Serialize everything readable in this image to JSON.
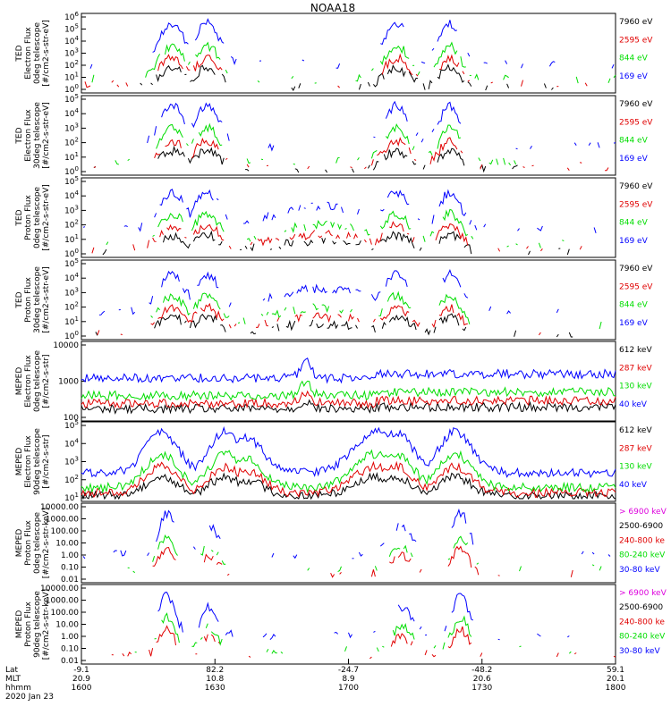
{
  "title": "NOAA18",
  "date_label": "2020 Jan 23",
  "xaxis": {
    "row_labels": [
      "Lat",
      "MLT",
      "hhmm"
    ],
    "times": [
      "1600",
      "1630",
      "1700",
      "1730",
      "1800"
    ],
    "lat": [
      "-9.1",
      "82.2",
      "-24.7",
      "-48.2",
      "59.1"
    ],
    "mlt": [
      "20.9",
      "10.8",
      "8.9",
      "20.6",
      "20.1"
    ]
  },
  "colors": {
    "black": "#000000",
    "blue": "#0000ff",
    "red": "#e00000",
    "green": "#00dd00",
    "magenta": "#dd00dd"
  },
  "chart_data": [
    {
      "type": "line",
      "ylabel": [
        "TED",
        "Electron Flux",
        "0deg telescope",
        "[#/cm2-s-str-eV]"
      ],
      "scale": "log",
      "yticks": [
        "10^0",
        "10^1",
        "10^2",
        "10^3",
        "10^4",
        "10^5",
        "10^6"
      ],
      "legend": [
        {
          "label": "7960 eV",
          "color": "#000000"
        },
        {
          "label": "2595 eV",
          "color": "#e00000"
        },
        {
          "label": "844 eV",
          "color": "#00dd00"
        },
        {
          "label": "169 eV",
          "color": "#0000ff"
        }
      ]
    },
    {
      "type": "line",
      "ylabel": [
        "TED",
        "Electron Flux",
        "30deg telescope",
        "[#/cm2-s-str-eV]"
      ],
      "scale": "log",
      "yticks": [
        "10^0",
        "10^1",
        "10^2",
        "10^3",
        "10^4",
        "10^5"
      ],
      "legend": [
        {
          "label": "7960 eV",
          "color": "#000000"
        },
        {
          "label": "2595 eV",
          "color": "#e00000"
        },
        {
          "label": "844 eV",
          "color": "#00dd00"
        },
        {
          "label": "169 eV",
          "color": "#0000ff"
        }
      ]
    },
    {
      "type": "line",
      "ylabel": [
        "TED",
        "Proton Flux",
        "0deg telescope",
        "[#/cm2-s-str-eV]"
      ],
      "scale": "log",
      "yticks": [
        "10^0",
        "10^1",
        "10^2",
        "10^3",
        "10^4",
        "10^5"
      ],
      "legend": [
        {
          "label": "7960 eV",
          "color": "#000000"
        },
        {
          "label": "2595 eV",
          "color": "#e00000"
        },
        {
          "label": "844 eV",
          "color": "#00dd00"
        },
        {
          "label": "169 eV",
          "color": "#0000ff"
        }
      ]
    },
    {
      "type": "line",
      "ylabel": [
        "TED",
        "Proton Flux",
        "30deg telescope",
        "[#/cm2-s-str-eV]"
      ],
      "scale": "log",
      "yticks": [
        "10^0",
        "10^1",
        "10^2",
        "10^3",
        "10^4",
        "10^5"
      ],
      "legend": [
        {
          "label": "7960 eV",
          "color": "#000000"
        },
        {
          "label": "2595 eV",
          "color": "#e00000"
        },
        {
          "label": "844 eV",
          "color": "#00dd00"
        },
        {
          "label": "169 eV",
          "color": "#0000ff"
        }
      ]
    },
    {
      "type": "line",
      "ylabel": [
        "MEPED",
        "Electron Flux",
        "0deg telescope",
        "[#/cm2-s-str]"
      ],
      "scale": "log",
      "yticks": [
        "100",
        "1000",
        "10000"
      ],
      "legend": [
        {
          "label": "612 keV",
          "color": "#000000"
        },
        {
          "label": "287 keV",
          "color": "#e00000"
        },
        {
          "label": "130 keV",
          "color": "#00dd00"
        },
        {
          "label": "40 keV",
          "color": "#0000ff"
        }
      ]
    },
    {
      "type": "line",
      "ylabel": [
        "MEPED",
        "Electron Flux",
        "90deg telescope",
        "[#/cm2-s-str]"
      ],
      "scale": "log",
      "yticks": [
        "10^1",
        "10^2",
        "10^3",
        "10^4",
        "10^5"
      ],
      "legend": [
        {
          "label": "612 keV",
          "color": "#000000"
        },
        {
          "label": "287 keV",
          "color": "#e00000"
        },
        {
          "label": "130 keV",
          "color": "#00dd00"
        },
        {
          "label": "40 keV",
          "color": "#0000ff"
        }
      ]
    },
    {
      "type": "line",
      "ylabel": [
        "MEPED",
        "Proton Flux",
        "0deg telescope",
        "[#/cm2-s-str-keV]"
      ],
      "scale": "log",
      "yticks": [
        "0.01",
        "0.10",
        "1.00",
        "10.00",
        "100.00",
        "1000.00",
        "10000.00"
      ],
      "legend": [
        {
          "label": "> 6900 keV",
          "color": "#dd00dd"
        },
        {
          "label": "2500-6900",
          "color": "#000000"
        },
        {
          "label": "240-800 ke",
          "color": "#e00000"
        },
        {
          "label": "80-240 keV",
          "color": "#00dd00"
        },
        {
          "label": "30-80 keV",
          "color": "#0000ff"
        }
      ]
    },
    {
      "type": "line",
      "ylabel": [
        "MEPED",
        "Proton Flux",
        "90deg telescope",
        "[#/cm2-s-str-keV]"
      ],
      "scale": "log",
      "yticks": [
        "0.01",
        "0.10",
        "1.00",
        "10.00",
        "100.00",
        "1000.00",
        "10000.00"
      ],
      "legend": [
        {
          "label": "> 6900 keV",
          "color": "#dd00dd"
        },
        {
          "label": "2500-6900",
          "color": "#000000"
        },
        {
          "label": "240-800 ke",
          "color": "#e00000"
        },
        {
          "label": "80-240 keV",
          "color": "#00dd00"
        },
        {
          "label": "30-80 keV",
          "color": "#0000ff"
        }
      ]
    }
  ]
}
